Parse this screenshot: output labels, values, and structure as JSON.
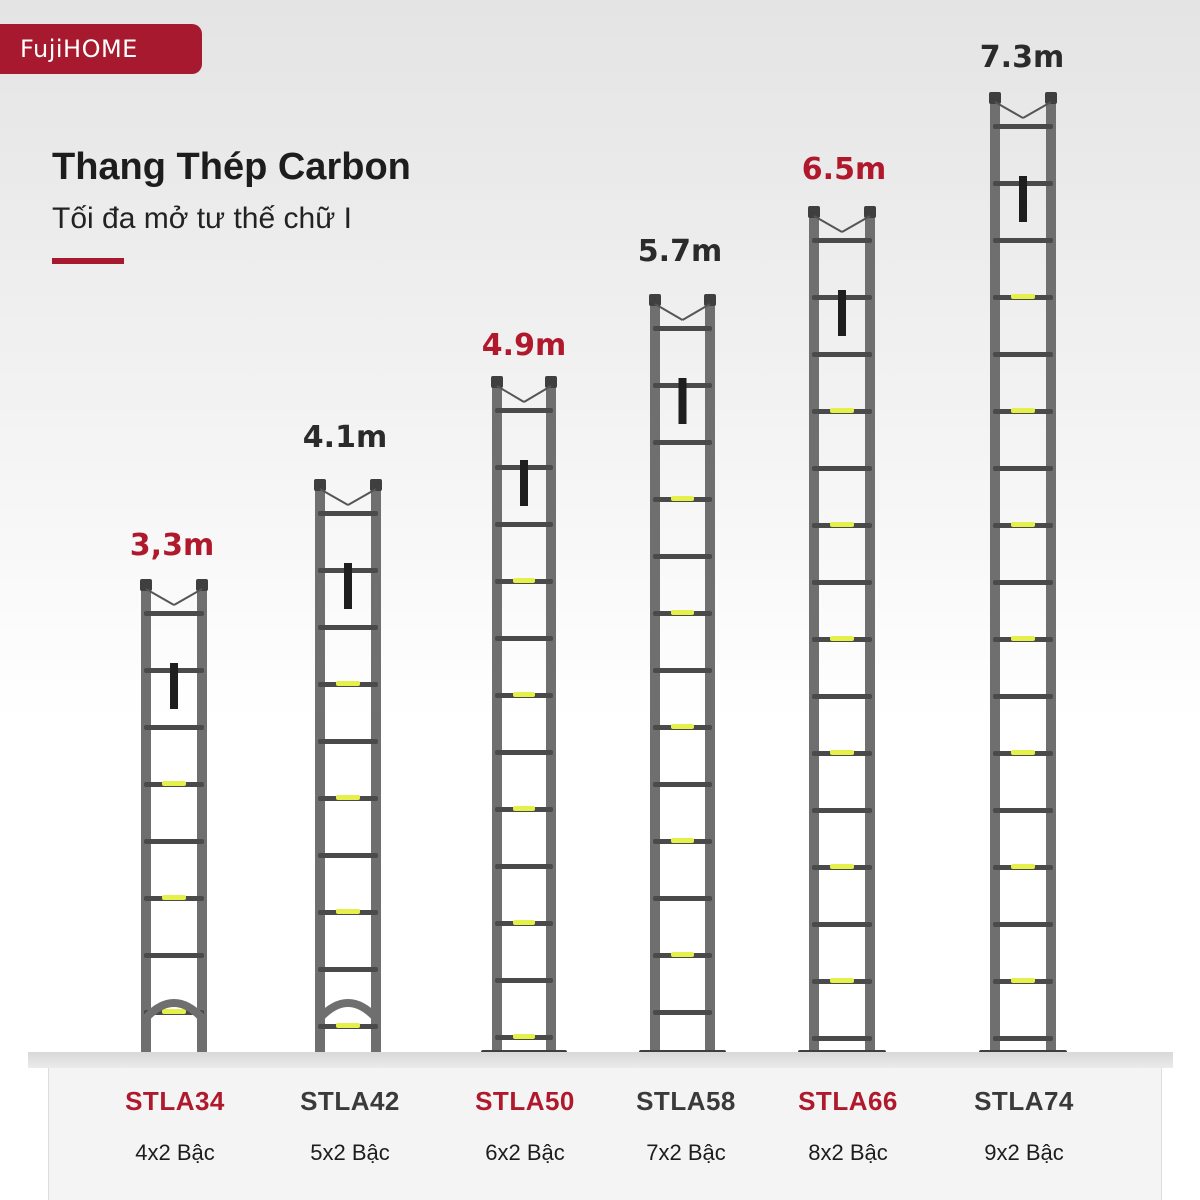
{
  "brand": "FujiHOME",
  "title": "Thang Thép Carbon",
  "subtitle": "Tối đa mở tư thế chữ I",
  "colors": {
    "accent": "#a6192e",
    "rung_highlight": "#e6f04a",
    "ladder_body": "#6f6f6f"
  },
  "products": [
    {
      "model": "STLA34",
      "steps": "4x2 Bậc",
      "height": "3,3m",
      "highlight": true
    },
    {
      "model": "STLA42",
      "steps": "5x2 Bậc",
      "height": "4.1m",
      "highlight": false
    },
    {
      "model": "STLA50",
      "steps": "6x2 Bậc",
      "height": "4.9m",
      "highlight": true
    },
    {
      "model": "STLA58",
      "steps": "7x2  Bậc",
      "height": "5.7m",
      "highlight": false
    },
    {
      "model": "STLA66",
      "steps": "8x2 Bậc",
      "height": "6.5m",
      "highlight": true
    },
    {
      "model": "STLA74",
      "steps": "9x2 Bậc",
      "height": "7.3m",
      "highlight": false
    }
  ]
}
